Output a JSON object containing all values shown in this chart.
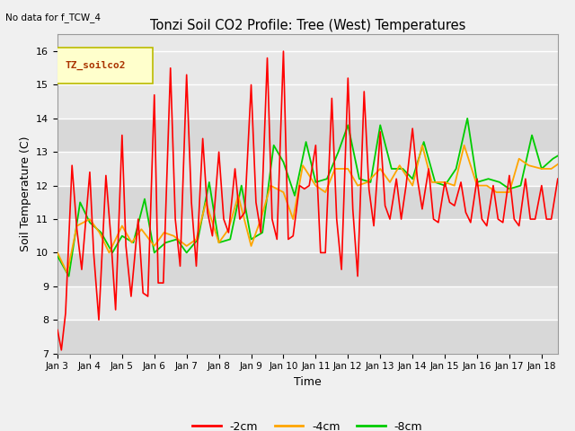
{
  "title": "Tonzi Soil CO2 Profile: Tree (West) Temperatures",
  "subtitle": "No data for f_TCW_4",
  "xlabel": "Time",
  "ylabel": "Soil Temperature (C)",
  "ylim": [
    7.0,
    16.5
  ],
  "yticks": [
    7.0,
    8.0,
    9.0,
    10.0,
    11.0,
    12.0,
    13.0,
    14.0,
    15.0,
    16.0
  ],
  "legend_label": "TZ_soilco2",
  "line_colors": {
    "-2cm": "#ff0000",
    "-4cm": "#ffa500",
    "-8cm": "#00cc00"
  },
  "xtick_labels": [
    "Jan 3",
    "Jan 4",
    "Jan 5",
    "Jan 6",
    "Jan 7",
    "Jan 8",
    "Jan 9",
    "Jan 10",
    "Jan 11",
    "Jan 12",
    "Jan 13",
    "Jan 14",
    "Jan 15",
    "Jan 16",
    "Jan 17",
    "Jan 18"
  ],
  "time_2cm": [
    0.0,
    0.12,
    0.25,
    0.45,
    0.6,
    0.75,
    1.0,
    1.12,
    1.28,
    1.5,
    1.65,
    1.8,
    2.0,
    2.12,
    2.28,
    2.5,
    2.65,
    2.8,
    3.0,
    3.12,
    3.28,
    3.5,
    3.65,
    3.8,
    4.0,
    4.15,
    4.3,
    4.5,
    4.65,
    4.8,
    5.0,
    5.15,
    5.3,
    5.5,
    5.65,
    5.8,
    6.0,
    6.15,
    6.3,
    6.5,
    6.65,
    6.8,
    7.0,
    7.15,
    7.3,
    7.5,
    7.65,
    7.8,
    8.0,
    8.15,
    8.3,
    8.5,
    8.65,
    8.8,
    9.0,
    9.15,
    9.3,
    9.5,
    9.65,
    9.8,
    10.0,
    10.15,
    10.3,
    10.5,
    10.65,
    10.8,
    11.0,
    11.15,
    11.3,
    11.5,
    11.65,
    11.8,
    12.0,
    12.15,
    12.3,
    12.5,
    12.65,
    12.8,
    13.0,
    13.15,
    13.3,
    13.5,
    13.65,
    13.8,
    14.0,
    14.15,
    14.3,
    14.5,
    14.65,
    14.8,
    15.0,
    15.15,
    15.3,
    15.5
  ],
  "vals_2cm": [
    7.7,
    7.1,
    8.2,
    12.6,
    10.7,
    9.5,
    12.4,
    10.0,
    8.0,
    12.3,
    10.5,
    8.3,
    13.5,
    10.2,
    8.7,
    11.0,
    8.8,
    8.7,
    14.7,
    9.1,
    9.1,
    15.5,
    11.0,
    9.6,
    15.3,
    11.5,
    9.6,
    13.4,
    11.2,
    10.5,
    13.0,
    11.0,
    10.6,
    12.5,
    11.0,
    11.2,
    15.0,
    11.5,
    10.6,
    15.8,
    11.0,
    10.4,
    16.0,
    10.4,
    10.5,
    12.0,
    11.9,
    12.0,
    13.2,
    10.0,
    10.0,
    14.6,
    11.0,
    9.5,
    15.2,
    11.3,
    9.3,
    14.8,
    11.9,
    10.8,
    13.6,
    11.4,
    11.0,
    12.2,
    11.0,
    12.0,
    13.7,
    12.2,
    11.3,
    12.5,
    11.0,
    10.9,
    12.1,
    11.5,
    11.4,
    12.1,
    11.2,
    10.9,
    12.2,
    11.0,
    10.8,
    12.0,
    11.0,
    10.9,
    12.3,
    11.0,
    10.8,
    12.2,
    11.0,
    11.0,
    12.0,
    11.0,
    11.0,
    12.2
  ],
  "time_4cm": [
    0.0,
    0.3,
    0.6,
    1.0,
    1.3,
    1.6,
    2.0,
    2.3,
    2.6,
    3.0,
    3.3,
    3.6,
    4.0,
    4.3,
    4.6,
    5.0,
    5.3,
    5.6,
    6.0,
    6.3,
    6.6,
    7.0,
    7.3,
    7.6,
    8.0,
    8.3,
    8.6,
    9.0,
    9.3,
    9.6,
    10.0,
    10.3,
    10.6,
    11.0,
    11.3,
    11.6,
    12.0,
    12.3,
    12.6,
    13.0,
    13.3,
    13.6,
    14.0,
    14.3,
    14.6,
    15.0,
    15.3,
    15.6
  ],
  "vals_4cm": [
    10.0,
    9.4,
    10.8,
    11.0,
    10.6,
    10.0,
    10.8,
    10.3,
    10.7,
    10.2,
    10.6,
    10.5,
    10.2,
    10.4,
    11.5,
    10.3,
    10.7,
    11.7,
    10.2,
    11.0,
    12.0,
    11.8,
    11.0,
    12.6,
    12.0,
    11.8,
    12.5,
    12.5,
    12.0,
    12.1,
    12.5,
    12.1,
    12.6,
    12.0,
    13.2,
    12.1,
    12.1,
    12.0,
    13.2,
    12.0,
    12.0,
    11.8,
    11.8,
    12.8,
    12.6,
    12.5,
    12.5,
    12.7
  ],
  "time_8cm": [
    0.0,
    0.35,
    0.7,
    1.0,
    1.35,
    1.7,
    2.0,
    2.35,
    2.7,
    3.0,
    3.35,
    3.7,
    4.0,
    4.35,
    4.7,
    5.0,
    5.35,
    5.7,
    6.0,
    6.35,
    6.7,
    7.0,
    7.35,
    7.7,
    8.0,
    8.35,
    8.7,
    9.0,
    9.35,
    9.7,
    10.0,
    10.35,
    10.7,
    11.0,
    11.35,
    11.7,
    12.0,
    12.35,
    12.7,
    13.0,
    13.35,
    13.7,
    14.0,
    14.35,
    14.7,
    15.0,
    15.35,
    15.7
  ],
  "vals_8cm": [
    9.9,
    9.3,
    11.5,
    10.9,
    10.6,
    10.0,
    10.5,
    10.3,
    11.6,
    10.0,
    10.3,
    10.4,
    10.0,
    10.4,
    12.1,
    10.3,
    10.4,
    12.0,
    10.4,
    10.6,
    13.2,
    12.7,
    11.7,
    13.3,
    12.1,
    12.2,
    13.0,
    13.8,
    12.2,
    12.1,
    13.8,
    12.5,
    12.5,
    12.2,
    13.3,
    12.1,
    12.0,
    12.5,
    14.0,
    12.1,
    12.2,
    12.1,
    11.9,
    12.0,
    13.5,
    12.5,
    12.8,
    13.0
  ],
  "gridline_color": "#ffffff"
}
